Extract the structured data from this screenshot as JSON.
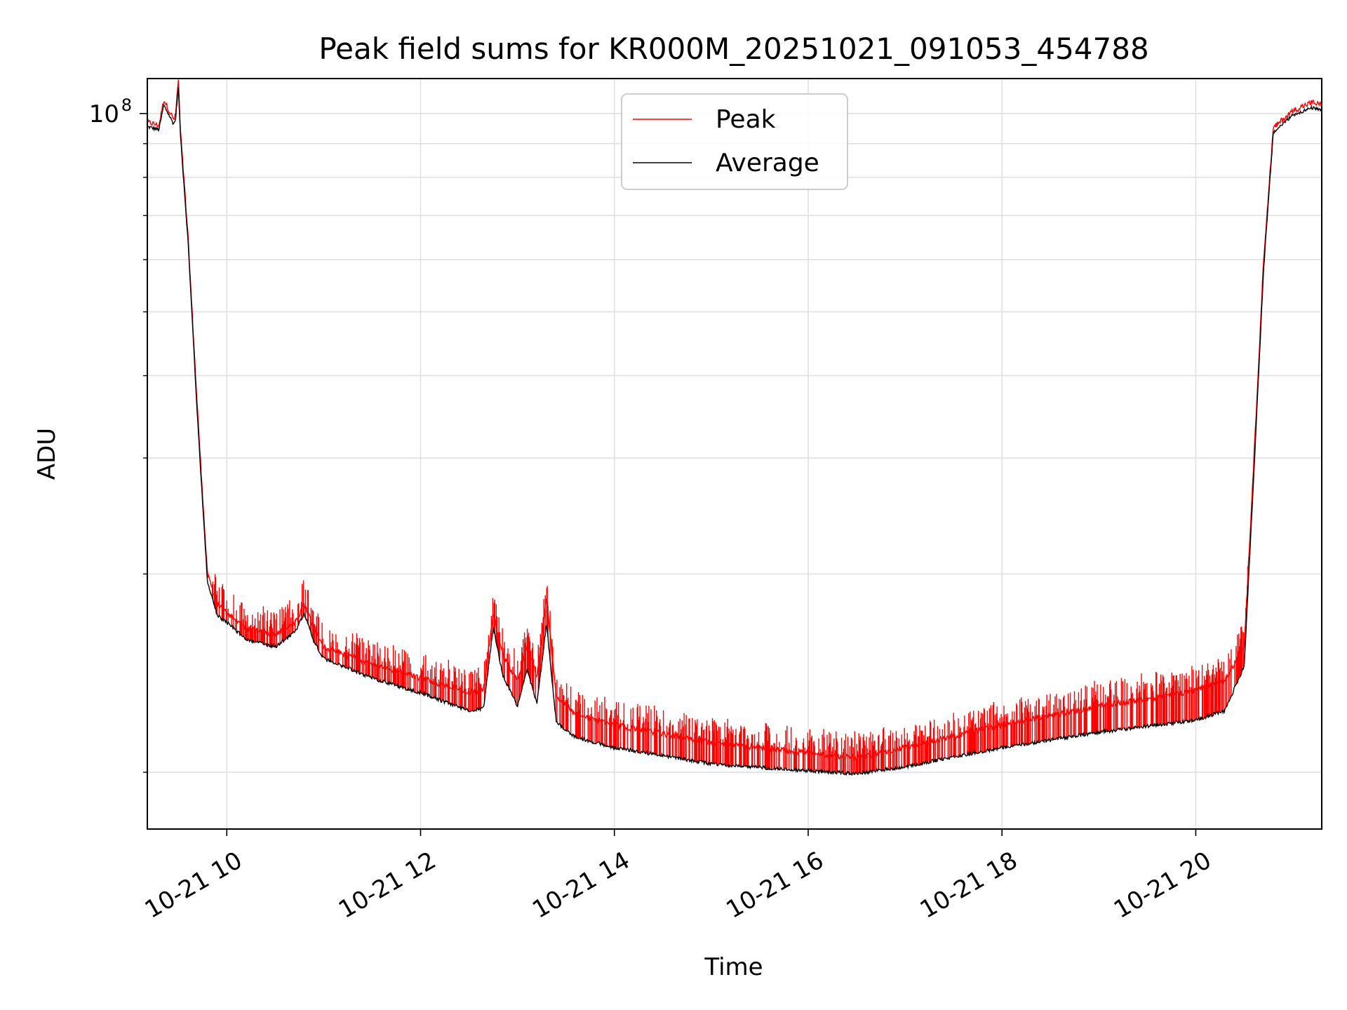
{
  "chart_data": {
    "type": "line",
    "title": "Peak field sums for KR000M_20251021_091053_454788",
    "xlabel": "Time",
    "ylabel": "ADU",
    "yscale": "log",
    "xlim_hours": [
      9.18,
      21.3
    ],
    "ylim": [
      8200000,
      113000000
    ],
    "x_ticks": [
      {
        "value": 10,
        "label": "10-21 10"
      },
      {
        "value": 12,
        "label": "10-21 12"
      },
      {
        "value": 14,
        "label": "10-21 14"
      },
      {
        "value": 16,
        "label": "10-21 16"
      },
      {
        "value": 18,
        "label": "10-21 18"
      },
      {
        "value": 20,
        "label": "10-21 20"
      }
    ],
    "y_major_ticks": [
      {
        "value": 100000000,
        "label_base": "10",
        "label_exp": "8"
      }
    ],
    "y_minor_ticks": [
      10000000,
      20000000,
      30000000,
      40000000,
      50000000,
      60000000,
      70000000,
      80000000,
      90000000
    ],
    "grid": true,
    "legend": {
      "position": "top-center",
      "entries": [
        "Peak",
        "Average"
      ]
    },
    "series": [
      {
        "name": "Peak",
        "color": "#ff0000",
        "x_hours": [
          9.18,
          9.3,
          9.35,
          9.45,
          9.47,
          9.5,
          9.52,
          9.6,
          9.7,
          9.8,
          9.9,
          10.0,
          10.2,
          10.5,
          10.7,
          10.8,
          10.9,
          11.0,
          11.5,
          12.0,
          12.5,
          12.65,
          12.75,
          12.85,
          13.0,
          13.1,
          13.2,
          13.3,
          13.4,
          13.5,
          13.6,
          14.0,
          15.0,
          16.0,
          16.5,
          17.0,
          18.0,
          19.0,
          20.0,
          20.3,
          20.5,
          20.6,
          20.7,
          20.8,
          20.9,
          21.0,
          21.2,
          21.3
        ],
        "values": [
          97000000,
          96000000,
          105000000,
          98000000,
          99000000,
          113000000,
          95000000,
          65000000,
          35000000,
          20000000,
          18000000,
          17500000,
          16500000,
          16200000,
          16800000,
          18000000,
          16500000,
          15500000,
          14600000,
          13900000,
          13200000,
          13400000,
          17500000,
          15000000,
          13800000,
          15500000,
          14000000,
          18500000,
          13000000,
          12700000,
          12200000,
          11800000,
          11100000,
          10700000,
          10500000,
          10900000,
          11800000,
          12600000,
          13300000,
          13800000,
          15500000,
          30000000,
          60000000,
          95000000,
          98000000,
          101000000,
          104000000,
          103000000
        ]
      },
      {
        "name": "Average",
        "color": "#000000",
        "x_hours": [
          9.18,
          9.3,
          9.35,
          9.45,
          9.47,
          9.5,
          9.52,
          9.6,
          9.7,
          9.8,
          9.9,
          10.0,
          10.2,
          10.5,
          10.7,
          10.8,
          10.9,
          11.0,
          11.5,
          12.0,
          12.5,
          12.65,
          12.75,
          12.85,
          13.0,
          13.1,
          13.2,
          13.3,
          13.4,
          13.5,
          13.6,
          14.0,
          15.0,
          16.0,
          16.5,
          17.0,
          18.0,
          19.0,
          20.0,
          20.3,
          20.5,
          20.6,
          20.7,
          20.8,
          20.9,
          21.0,
          21.2,
          21.3
        ],
        "values": [
          95500000,
          94500000,
          103000000,
          96500000,
          97500000,
          110000000,
          93500000,
          64000000,
          34000000,
          19500000,
          17300000,
          16900000,
          15900000,
          15500000,
          16300000,
          17400000,
          15800000,
          14900000,
          13900000,
          13200000,
          12400000,
          12500000,
          16600000,
          14000000,
          12600000,
          14300000,
          12700000,
          16800000,
          11900000,
          11600000,
          11300000,
          10900000,
          10300000,
          10050000,
          9950000,
          10200000,
          10900000,
          11500000,
          12000000,
          12400000,
          14500000,
          28500000,
          58000000,
          93500000,
          96500000,
          99500000,
          102000000,
          101000000
        ]
      }
    ]
  }
}
